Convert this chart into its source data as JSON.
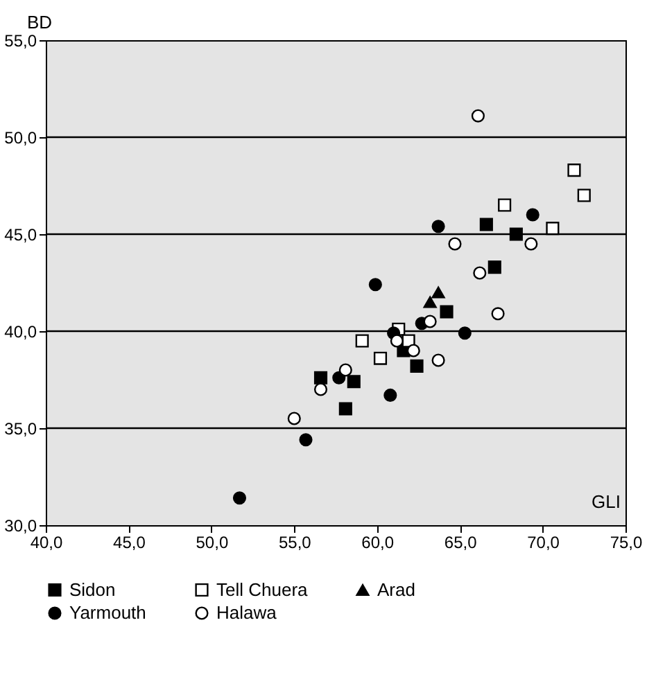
{
  "chart_data": {
    "type": "scatter",
    "xlabel": "GLI",
    "ylabel": "BD",
    "xlim": [
      40,
      75
    ],
    "ylim": [
      30,
      55
    ],
    "xticks": [
      {
        "value": 40,
        "label": "40,0"
      },
      {
        "value": 45,
        "label": "45,0"
      },
      {
        "value": 50,
        "label": "50,0"
      },
      {
        "value": 55,
        "label": "55,0"
      },
      {
        "value": 60,
        "label": "60,0"
      },
      {
        "value": 65,
        "label": "65,0"
      },
      {
        "value": 70,
        "label": "70,0"
      },
      {
        "value": 75,
        "label": "75,0"
      }
    ],
    "yticks": [
      {
        "value": 30,
        "label": "30,0"
      },
      {
        "value": 35,
        "label": "35,0"
      },
      {
        "value": 40,
        "label": "40,0"
      },
      {
        "value": 45,
        "label": "45,0"
      },
      {
        "value": 50,
        "label": "50,0"
      },
      {
        "value": 55,
        "label": "55,0"
      }
    ],
    "grid": "y",
    "legend": "bottom",
    "series": [
      {
        "name": "Sidon",
        "color": "#000000",
        "marker": "square",
        "x": [
          56.6,
          58.1,
          58.6,
          61.6,
          62.4,
          64.2,
          67.1,
          66.6,
          68.4
        ],
        "values": [
          37.6,
          36.0,
          37.4,
          39.0,
          38.2,
          41.0,
          43.3,
          45.5,
          45.0
        ]
      },
      {
        "name": "Tell Chuera",
        "color": "#ffffff",
        "marker": "square",
        "x": [
          59.1,
          60.2,
          61.3,
          61.9,
          67.7,
          70.6,
          71.9,
          72.5
        ],
        "values": [
          39.5,
          38.6,
          40.1,
          39.5,
          46.5,
          45.3,
          48.3,
          47.0
        ]
      },
      {
        "name": "Arad",
        "color": "#000000",
        "marker": "triangle",
        "x": [
          63.2,
          63.7
        ],
        "values": [
          41.5,
          42.0
        ]
      },
      {
        "name": "Yarmouth",
        "color": "#000000",
        "marker": "circle",
        "x": [
          59.9,
          57.7,
          55.7,
          51.7,
          60.8,
          61.0,
          62.7,
          65.3,
          63.7,
          69.4
        ],
        "values": [
          42.4,
          37.6,
          34.4,
          31.4,
          36.7,
          39.9,
          40.4,
          39.9,
          45.4,
          46.0
        ]
      },
      {
        "name": "Halawa",
        "color": "#ffffff",
        "marker": "circle",
        "x": [
          58.1,
          56.6,
          55.0,
          61.2,
          62.2,
          63.7,
          63.2,
          67.3,
          66.2,
          64.7,
          69.3,
          66.1
        ],
        "values": [
          38.0,
          37.0,
          35.5,
          39.5,
          39.0,
          38.5,
          40.5,
          40.9,
          43.0,
          44.5,
          44.5,
          51.1
        ]
      }
    ]
  }
}
